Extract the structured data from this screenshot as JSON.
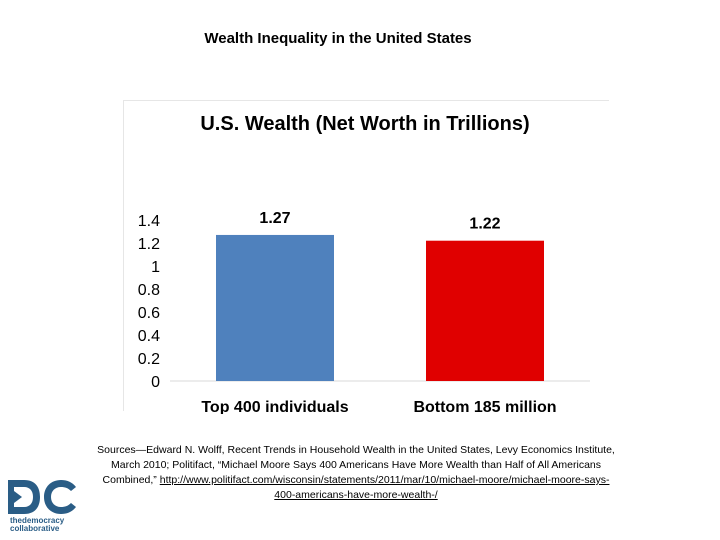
{
  "slide": {
    "title": "Wealth Inequality in the United States"
  },
  "chart_data": {
    "type": "bar",
    "title": "U.S. Wealth (Net Worth in Trillions)",
    "categories": [
      "Top 400 individuals",
      "Bottom 185 million"
    ],
    "values": [
      1.27,
      1.22
    ],
    "data_labels": [
      "1.27",
      "1.22"
    ],
    "colors": [
      "#4f81bd",
      "#e00000"
    ],
    "ylim": [
      0,
      1.4
    ],
    "yticks": [
      "0",
      "0.2",
      "0.4",
      "0.6",
      "0.8",
      "1",
      "1.2",
      "1.4"
    ],
    "grid": false,
    "legend": false
  },
  "sources": {
    "text": "Sources—Edward N. Wolff, Recent Trends in Household Wealth in the United States, Levy Economics Institute, March 2010; Politifact, “Michael Moore Says 400 Americans Have More Wealth than Half of All Americans Combined,” ",
    "link": "http://www.politifact.com/wisconsin/statements/2011/mar/10/michael-moore/michael-moore-says-400-americans-have-more-wealth-/"
  },
  "logo": {
    "mark": "DC",
    "line1": "thedemocracy",
    "line2": "collaborative"
  }
}
